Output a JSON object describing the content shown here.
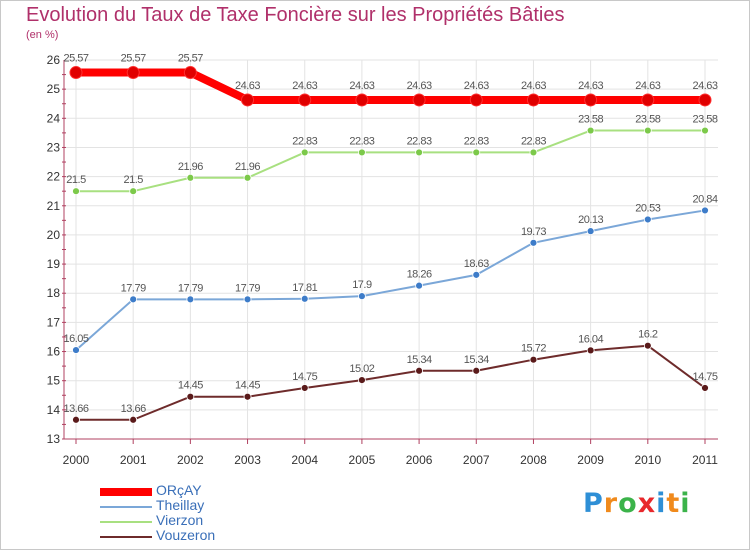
{
  "chart_data": {
    "type": "line",
    "title": "Evolution du Taux de Taxe Foncière sur les Propriétés Bâties",
    "subtitle": "(en %)",
    "x": [
      "2000",
      "2001",
      "2002",
      "2003",
      "2004",
      "2005",
      "2006",
      "2007",
      "2008",
      "2009",
      "2010",
      "2011"
    ],
    "ylim": [
      13,
      26
    ],
    "yticks": [
      13,
      14,
      15,
      16,
      17,
      18,
      19,
      20,
      21,
      22,
      23,
      24,
      25,
      26
    ],
    "grid": true,
    "legend_position": "bottom-left",
    "series": [
      {
        "name": "ORçAY",
        "color": "#ff0000",
        "marker": "#e00000",
        "values": [
          25.57,
          25.57,
          25.57,
          24.63,
          24.63,
          24.63,
          24.63,
          24.63,
          24.63,
          24.63,
          24.63,
          24.63
        ],
        "labels": [
          "25.57",
          "25.57",
          "25.57",
          "24.63",
          "24.63",
          "24.63",
          "24.63",
          "24.63",
          "24.63",
          "24.63",
          "24.63",
          "24.63"
        ]
      },
      {
        "name": "Theillay",
        "color": "#7ba7d8",
        "marker": "#3d7cc9",
        "values": [
          16.05,
          17.79,
          17.79,
          17.79,
          17.81,
          17.9,
          18.26,
          18.63,
          19.73,
          20.13,
          20.53,
          20.84
        ],
        "labels": [
          "16.05",
          "17.79",
          "17.79",
          "17.79",
          "17.81",
          "17.9",
          "18.26",
          "18.63",
          "19.73",
          "20.13",
          "20.53",
          "20.84"
        ]
      },
      {
        "name": "Vierzon",
        "color": "#a8e080",
        "marker": "#7cc94a",
        "values": [
          21.5,
          21.5,
          21.96,
          21.96,
          22.83,
          22.83,
          22.83,
          22.83,
          22.83,
          23.58,
          23.58,
          23.58
        ],
        "labels": [
          "21.5",
          "21.5",
          "21.96",
          "21.96",
          "22.83",
          "22.83",
          "22.83",
          "22.83",
          "22.83",
          "23.58",
          "23.58",
          "23.58"
        ]
      },
      {
        "name": "Vouzeron",
        "color": "#6e2b2b",
        "marker": "#5a1a1a",
        "values": [
          13.66,
          13.66,
          14.45,
          14.45,
          14.75,
          15.02,
          15.34,
          15.34,
          15.72,
          16.04,
          16.2,
          14.75
        ],
        "labels": [
          "13.66",
          "13.66",
          "14.45",
          "14.45",
          "14.75",
          "15.02",
          "15.34",
          "15.34",
          "15.72",
          "16.04",
          "16.2",
          "14.75"
        ]
      }
    ]
  },
  "brand": {
    "letters": [
      "P",
      "r",
      "o",
      "x",
      "i",
      "t",
      "i"
    ],
    "colors": [
      "#2e8fd6",
      "#f08a1c",
      "#3bb34a",
      "#e8282c",
      "#2e8fd6",
      "#f08a1c",
      "#3bb34a"
    ]
  }
}
